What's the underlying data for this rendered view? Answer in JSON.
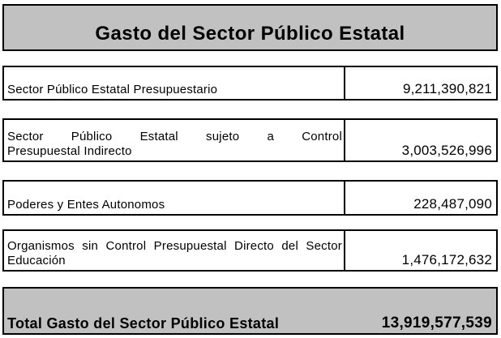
{
  "document": {
    "title": "Gasto del Sector Público Estatal",
    "rows": [
      {
        "label_lines": [
          "Sector Público Estatal Presupuestario"
        ],
        "value": "9,211,390,821"
      },
      {
        "label_lines": [
          "Sector Público Estatal sujeto a Control",
          "Presupuestal Indirecto"
        ],
        "value": "3,003,526,996"
      },
      {
        "label_lines": [
          "Poderes y Entes Autonomos"
        ],
        "value": "228,487,090"
      },
      {
        "label_lines": [
          "Organismos sin Control Presupuestal Directo del Sector",
          "Educación"
        ],
        "value": "1,476,172,632"
      }
    ],
    "total": {
      "label": "Total Gasto del Sector Público Estatal",
      "value": "13,919,577,539"
    },
    "colors": {
      "banner_bg": "#c1c1c1",
      "border": "#000000",
      "row_bg": "#ffffff",
      "text": "#000000"
    }
  }
}
